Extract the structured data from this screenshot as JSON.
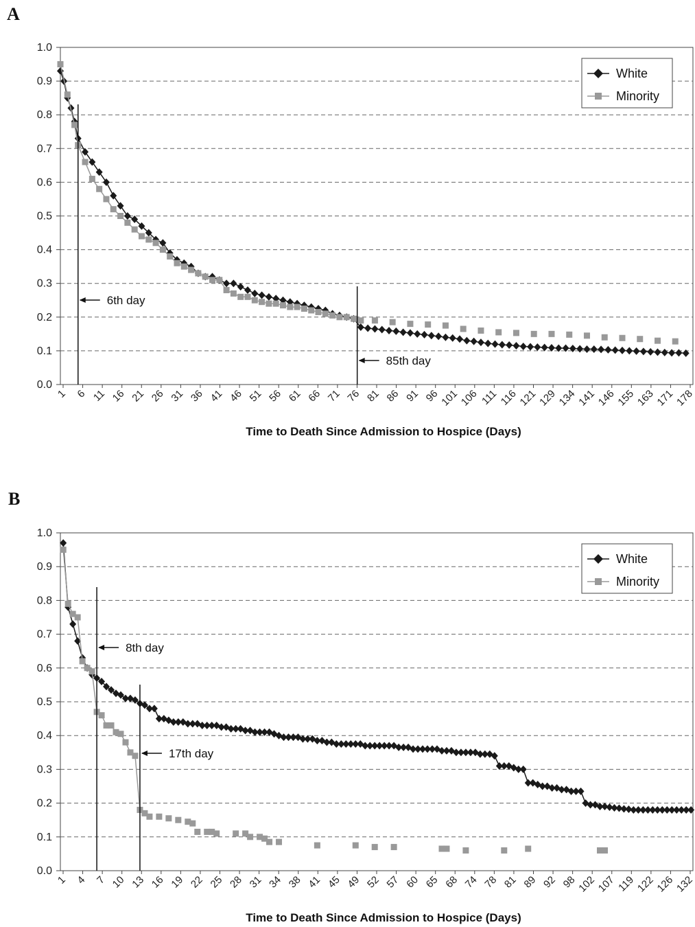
{
  "chart_data": [
    {
      "panel": "A",
      "type": "line",
      "xlabel": "Time to Death Since Admission to Hospice (Days)",
      "ylabel": "",
      "ylim": [
        0,
        1
      ],
      "yticks": [
        "0.0",
        "0.1",
        "0.2",
        "0.3",
        "0.4",
        "0.5",
        "0.6",
        "0.7",
        "0.8",
        "0.9",
        "1.0"
      ],
      "x_tick_labels": [
        "1",
        "6",
        "11",
        "16",
        "21",
        "26",
        "31",
        "36",
        "41",
        "46",
        "51",
        "56",
        "61",
        "66",
        "71",
        "76",
        "81",
        "86",
        "91",
        "96",
        "101",
        "106",
        "111",
        "116",
        "121",
        "129",
        "134",
        "141",
        "146",
        "155",
        "163",
        "171",
        "178"
      ],
      "grid": "horizontal dashed",
      "legend_position": "top-right",
      "annotations": [
        {
          "label": "6th day",
          "x": 6
        },
        {
          "label": "85th day",
          "x": 85
        }
      ],
      "series": [
        {
          "name": "White",
          "color": "#1a1a1a",
          "marker": "diamond",
          "x": [
            1,
            2,
            3,
            4,
            5,
            6,
            8,
            10,
            12,
            14,
            16,
            18,
            20,
            22,
            24,
            26,
            28,
            30,
            32,
            34,
            36,
            38,
            40,
            42,
            44,
            46,
            48,
            50,
            52,
            54,
            56,
            58,
            60,
            62,
            64,
            66,
            68,
            70,
            72,
            74,
            76,
            78,
            80,
            82,
            84,
            86,
            88,
            90,
            92,
            94,
            96,
            98,
            100,
            102,
            104,
            106,
            108,
            110,
            112,
            114,
            116,
            118,
            120,
            122,
            124,
            126,
            128,
            130,
            132,
            134,
            136,
            138,
            140,
            142,
            144,
            146,
            148,
            150,
            152,
            154,
            156,
            158,
            160,
            162,
            164,
            166,
            168,
            170,
            172,
            174,
            176,
            178
          ],
          "y": [
            0.93,
            0.9,
            0.85,
            0.82,
            0.78,
            0.73,
            0.69,
            0.66,
            0.63,
            0.6,
            0.56,
            0.53,
            0.5,
            0.49,
            0.47,
            0.45,
            0.43,
            0.42,
            0.39,
            0.37,
            0.36,
            0.35,
            0.33,
            0.32,
            0.32,
            0.31,
            0.3,
            0.3,
            0.29,
            0.28,
            0.27,
            0.265,
            0.26,
            0.255,
            0.25,
            0.245,
            0.24,
            0.235,
            0.23,
            0.225,
            0.22,
            0.21,
            0.205,
            0.2,
            0.195,
            0.17,
            0.167,
            0.165,
            0.163,
            0.16,
            0.158,
            0.155,
            0.153,
            0.15,
            0.148,
            0.145,
            0.143,
            0.14,
            0.138,
            0.135,
            0.13,
            0.128,
            0.125,
            0.122,
            0.12,
            0.118,
            0.117,
            0.115,
            0.113,
            0.112,
            0.111,
            0.11,
            0.109,
            0.108,
            0.108,
            0.107,
            0.106,
            0.105,
            0.105,
            0.104,
            0.103,
            0.102,
            0.101,
            0.1,
            0.099,
            0.098,
            0.097,
            0.096,
            0.095,
            0.094,
            0.094,
            0.093
          ]
        },
        {
          "name": "Minority",
          "color": "#999999",
          "marker": "square",
          "x": [
            1,
            3,
            5,
            6,
            8,
            10,
            12,
            14,
            16,
            18,
            20,
            22,
            24,
            26,
            28,
            30,
            32,
            34,
            36,
            38,
            40,
            42,
            44,
            46,
            48,
            50,
            52,
            54,
            56,
            58,
            60,
            62,
            64,
            66,
            68,
            70,
            72,
            74,
            76,
            78,
            80,
            82,
            84,
            86,
            90,
            95,
            100,
            105,
            110,
            115,
            120,
            125,
            130,
            135,
            140,
            145,
            150,
            155,
            160,
            165,
            170,
            175
          ],
          "y": [
            0.95,
            0.86,
            0.77,
            0.71,
            0.66,
            0.61,
            0.58,
            0.55,
            0.52,
            0.5,
            0.48,
            0.46,
            0.44,
            0.43,
            0.42,
            0.4,
            0.38,
            0.36,
            0.35,
            0.34,
            0.33,
            0.32,
            0.31,
            0.31,
            0.28,
            0.27,
            0.26,
            0.26,
            0.25,
            0.245,
            0.24,
            0.24,
            0.235,
            0.23,
            0.23,
            0.225,
            0.22,
            0.215,
            0.21,
            0.205,
            0.2,
            0.2,
            0.195,
            0.19,
            0.19,
            0.185,
            0.18,
            0.178,
            0.175,
            0.165,
            0.16,
            0.155,
            0.153,
            0.15,
            0.15,
            0.148,
            0.145,
            0.14,
            0.138,
            0.135,
            0.13,
            0.128
          ]
        }
      ]
    },
    {
      "panel": "B",
      "type": "line",
      "xlabel": "Time to Death Since Admission to Hospice (Days)",
      "ylabel": "",
      "ylim": [
        0,
        1
      ],
      "yticks": [
        "0.0",
        "0.1",
        "0.2",
        "0.3",
        "0.4",
        "0.5",
        "0.6",
        "0.7",
        "0.8",
        "0.9",
        "1.0"
      ],
      "x_tick_labels": [
        "1",
        "4",
        "7",
        "10",
        "13",
        "16",
        "19",
        "22",
        "25",
        "28",
        "31",
        "34",
        "38",
        "41",
        "45",
        "49",
        "52",
        "57",
        "60",
        "65",
        "68",
        "74",
        "78",
        "81",
        "89",
        "92",
        "98",
        "102",
        "107",
        "119",
        "122",
        "126",
        "132"
      ],
      "grid": "horizontal dashed",
      "legend_position": "top-right",
      "annotations": [
        {
          "label": "8th day",
          "x": 8
        },
        {
          "label": "17th day",
          "x": 17
        }
      ],
      "series": [
        {
          "name": "White",
          "color": "#1a1a1a",
          "marker": "diamond",
          "x": [
            1,
            2,
            3,
            4,
            5,
            6,
            7,
            8,
            9,
            10,
            11,
            12,
            13,
            14,
            15,
            16,
            17,
            18,
            19,
            20,
            21,
            22,
            23,
            24,
            25,
            26,
            27,
            28,
            29,
            30,
            31,
            32,
            33,
            34,
            35,
            36,
            37,
            38,
            39,
            40,
            41,
            42,
            43,
            44,
            45,
            46,
            47,
            48,
            49,
            50,
            51,
            52,
            53,
            54,
            55,
            56,
            57,
            58,
            59,
            60,
            61,
            62,
            63,
            64,
            65,
            66,
            67,
            68,
            69,
            70,
            71,
            72,
            73,
            74,
            75,
            76,
            77,
            78,
            79,
            80,
            81,
            82,
            83,
            84,
            85,
            86,
            87,
            88,
            89,
            90,
            91,
            92,
            93,
            94,
            95,
            96,
            97,
            98,
            99,
            100,
            101,
            102,
            103,
            104,
            105,
            106,
            107,
            108,
            109,
            110,
            111,
            112,
            113,
            114,
            115,
            116,
            117,
            118,
            119,
            120,
            121,
            122,
            123,
            124,
            125,
            126,
            127,
            128,
            129,
            130,
            131,
            132
          ],
          "y": [
            0.97,
            0.78,
            0.73,
            0.68,
            0.63,
            0.6,
            0.58,
            0.57,
            0.56,
            0.545,
            0.535,
            0.525,
            0.52,
            0.51,
            0.51,
            0.505,
            0.495,
            0.49,
            0.48,
            0.48,
            0.45,
            0.45,
            0.445,
            0.44,
            0.44,
            0.44,
            0.435,
            0.435,
            0.435,
            0.43,
            0.43,
            0.43,
            0.43,
            0.425,
            0.425,
            0.42,
            0.42,
            0.42,
            0.415,
            0.415,
            0.41,
            0.41,
            0.41,
            0.41,
            0.405,
            0.4,
            0.395,
            0.395,
            0.395,
            0.395,
            0.39,
            0.39,
            0.39,
            0.385,
            0.385,
            0.38,
            0.38,
            0.375,
            0.375,
            0.375,
            0.375,
            0.375,
            0.375,
            0.37,
            0.37,
            0.37,
            0.37,
            0.37,
            0.37,
            0.37,
            0.365,
            0.365,
            0.365,
            0.36,
            0.36,
            0.36,
            0.36,
            0.36,
            0.36,
            0.355,
            0.355,
            0.355,
            0.35,
            0.35,
            0.35,
            0.35,
            0.35,
            0.345,
            0.345,
            0.345,
            0.34,
            0.31,
            0.31,
            0.31,
            0.305,
            0.3,
            0.3,
            0.26,
            0.26,
            0.255,
            0.25,
            0.25,
            0.245,
            0.245,
            0.24,
            0.24,
            0.235,
            0.235,
            0.235,
            0.2,
            0.195,
            0.195,
            0.19,
            0.19,
            0.188,
            0.186,
            0.185,
            0.183,
            0.182,
            0.18,
            0.18,
            0.18,
            0.18,
            0.18,
            0.18,
            0.18,
            0.18,
            0.18,
            0.18,
            0.18,
            0.18,
            0.18
          ],
          "marker_count": 132
        },
        {
          "name": "Minority",
          "color": "#999999",
          "marker": "square",
          "x": [
            1,
            2,
            3,
            4,
            5,
            6,
            7,
            8,
            9,
            10,
            11,
            12,
            13,
            14,
            15,
            16,
            17,
            18,
            19,
            21,
            23,
            25,
            27,
            28,
            29,
            31,
            32,
            33,
            37,
            39,
            40,
            42,
            43,
            44,
            46,
            54,
            62,
            66,
            70,
            80,
            81,
            85,
            93,
            98,
            113,
            114
          ],
          "y": [
            0.95,
            0.79,
            0.76,
            0.75,
            0.62,
            0.6,
            0.59,
            0.47,
            0.46,
            0.43,
            0.43,
            0.41,
            0.405,
            0.38,
            0.35,
            0.34,
            0.18,
            0.17,
            0.16,
            0.16,
            0.155,
            0.15,
            0.145,
            0.14,
            0.115,
            0.115,
            0.115,
            0.11,
            0.11,
            0.11,
            0.1,
            0.1,
            0.095,
            0.085,
            0.085,
            0.075,
            0.075,
            0.07,
            0.07,
            0.065,
            0.065,
            0.06,
            0.06,
            0.065,
            0.06,
            0.06
          ]
        }
      ]
    }
  ]
}
